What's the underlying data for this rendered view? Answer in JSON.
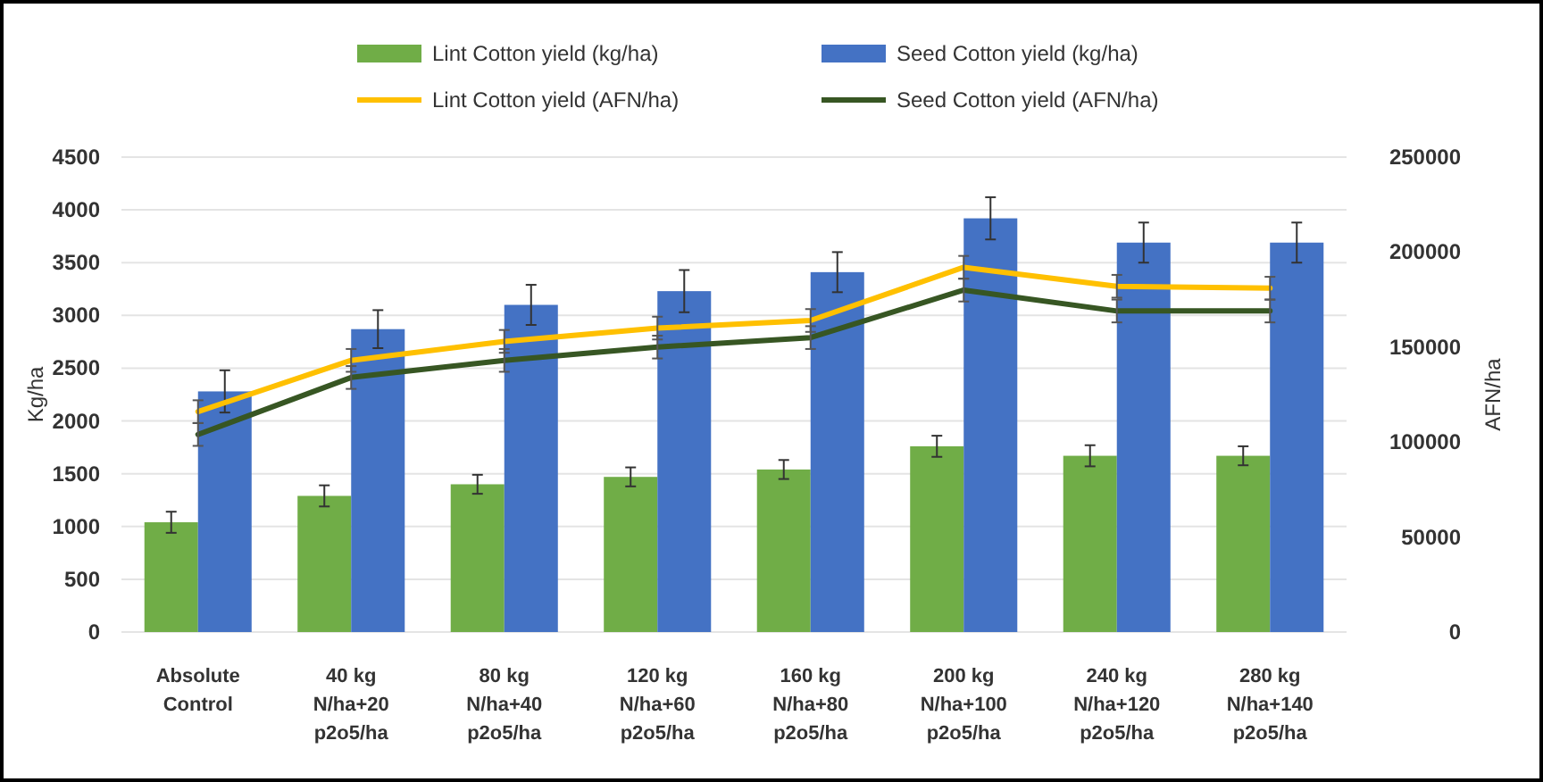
{
  "chart_data": {
    "type": "bar",
    "categories": [
      "Absolute Control",
      "40 kg N/ha+20 p2o5/ha",
      "80 kg N/ha+40 p2o5/ha",
      "120 kg N/ha+60 p2o5/ha",
      "160 kg N/ha+80 p2o5/ha",
      "200 kg N/ha+100 p2o5/ha",
      "240 kg N/ha+120 p2o5/ha",
      "280 kg N/ha+140 p2o5/ha"
    ],
    "ylabel": "Kg/ha",
    "y2label": "AFN/ha",
    "ylim": [
      0,
      4500
    ],
    "yticks": [
      0,
      500,
      1000,
      1500,
      2000,
      2500,
      3000,
      3500,
      4000,
      4500
    ],
    "y2lim": [
      0,
      250000
    ],
    "y2ticks": [
      0,
      50000,
      100000,
      150000,
      200000,
      250000
    ],
    "grid": "y",
    "legend": "top",
    "series": [
      {
        "name": "Lint Cotton yield (kg/ha)",
        "color": "#70ad47",
        "values": [
          1040,
          1290,
          1400,
          1470,
          1540,
          1760,
          1670,
          1670
        ],
        "errors": [
          100,
          100,
          90,
          90,
          90,
          100,
          100,
          90
        ]
      },
      {
        "name": "Seed Cotton yield (kg/ha)",
        "color": "#4472c4",
        "values": [
          2280,
          2870,
          3100,
          3230,
          3410,
          3920,
          3690,
          3690
        ],
        "errors": [
          200,
          180,
          190,
          200,
          190,
          200,
          190,
          190
        ]
      },
      {
        "name": "Lint Cotton yield (AFN/ha)",
        "type": "line",
        "axis": "y2",
        "color": "#ffc000",
        "values": [
          116000,
          143000,
          153000,
          160000,
          164000,
          192000,
          182000,
          181000
        ],
        "errors": [
          6000,
          6000,
          6000,
          6000,
          6000,
          6000,
          6000,
          6000
        ]
      },
      {
        "name": "Seed Cotton yield (AFN/ha)",
        "type": "line",
        "axis": "y2",
        "color": "#375623",
        "values": [
          104000,
          134000,
          143000,
          150000,
          155000,
          180000,
          169000,
          169000
        ],
        "errors": [
          6000,
          6000,
          6000,
          6000,
          6000,
          6000,
          6000,
          6000
        ]
      }
    ]
  }
}
